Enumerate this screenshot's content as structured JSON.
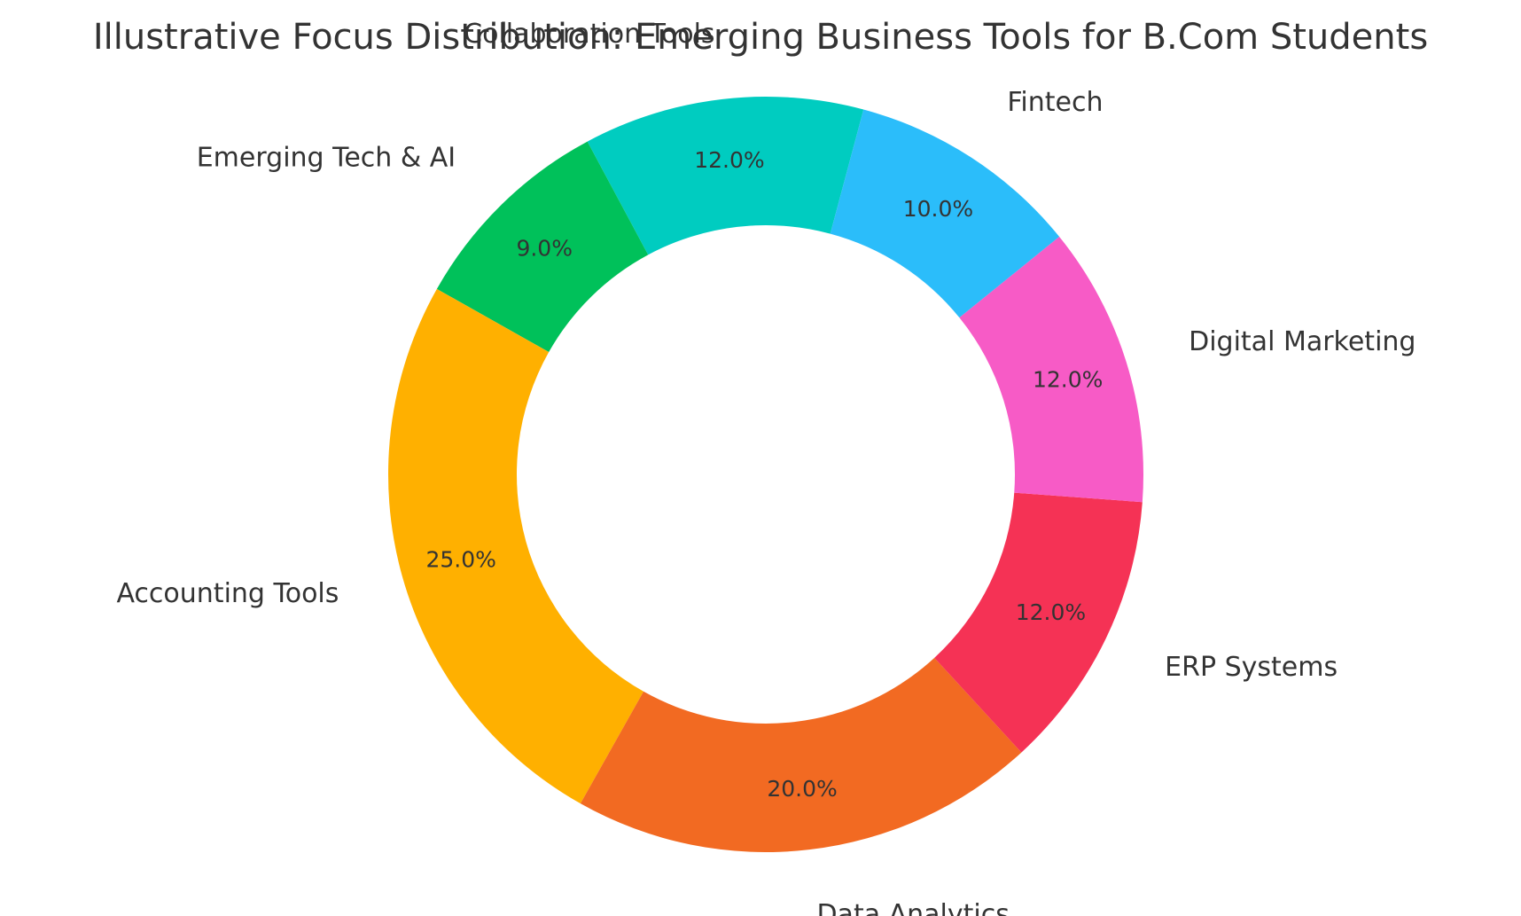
{
  "chart_data": {
    "type": "pie",
    "variant": "donut",
    "title": "Illustrative Focus Distribution: Emerging Business Tools for B.Com Students",
    "categories": [
      "Collaboration Tools",
      "Emerging Tech & AI",
      "Accounting Tools",
      "Data Analytics",
      "ERP Systems",
      "Digital Marketing",
      "Fintech"
    ],
    "values": [
      12.0,
      9.0,
      25.0,
      20.0,
      12.0,
      12.0,
      10.0
    ],
    "percent_labels": [
      "12.0%",
      "9.0%",
      "25.0%",
      "20.0%",
      "12.0%",
      "12.0%",
      "10.0%"
    ],
    "colors": [
      "#00CCC0",
      "#00C15A",
      "#FFB000",
      "#F26A22",
      "#F53255",
      "#F75BC6",
      "#2BBDFA"
    ],
    "start_angle_deg": 75,
    "direction": "counterclockwise",
    "legend": "none"
  }
}
